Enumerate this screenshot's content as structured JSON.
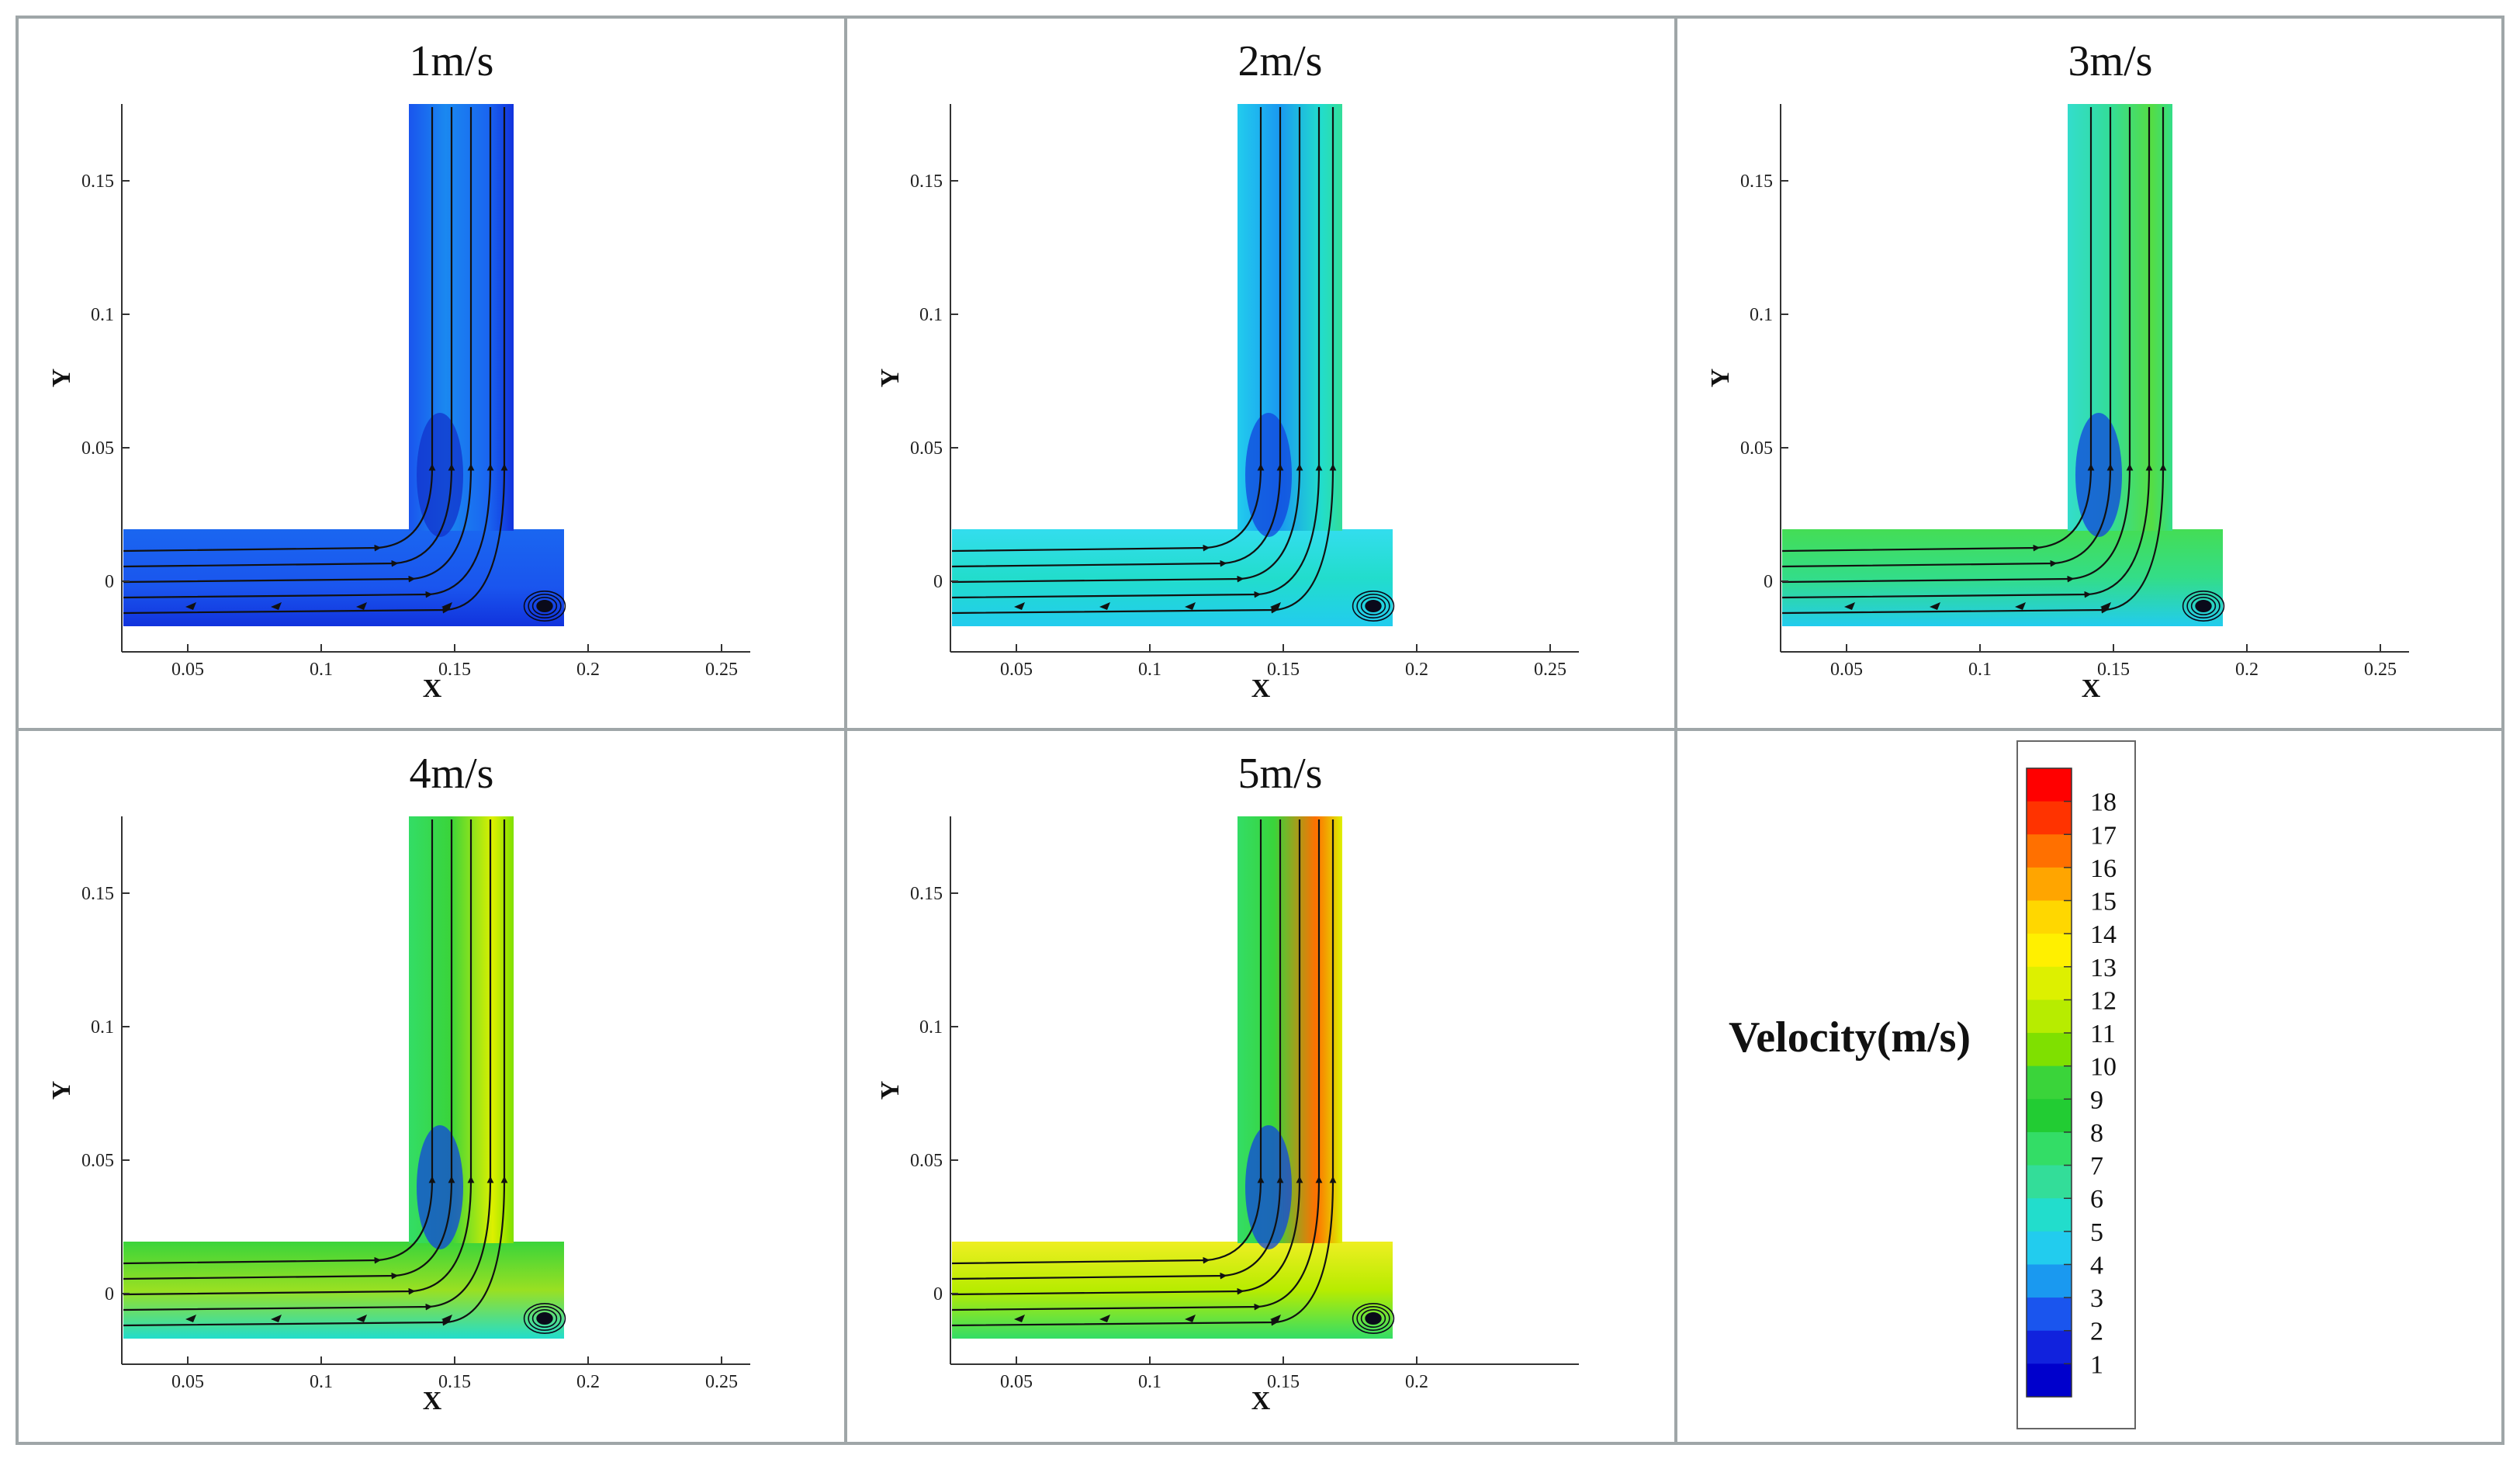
{
  "figure": {
    "panels": [
      {
        "title": "1m/s",
        "x_ticks": [
          "0.05",
          "0.1",
          "0.15",
          "0.2",
          "0.25"
        ],
        "y_ticks": [
          "0",
          "0.05",
          "0.1",
          "0.15"
        ],
        "x_axis_label": "X",
        "y_axis_label": "Y"
      },
      {
        "title": "2m/s",
        "x_ticks": [
          "0.05",
          "0.1",
          "0.15",
          "0.2",
          "0.25"
        ],
        "y_ticks": [
          "0",
          "0.05",
          "0.1",
          "0.15"
        ],
        "x_axis_label": "X",
        "y_axis_label": "Y"
      },
      {
        "title": "3m/s",
        "x_ticks": [
          "0.05",
          "0.1",
          "0.15",
          "0.2",
          "0.25"
        ],
        "y_ticks": [
          "0",
          "0.05",
          "0.1",
          "0.15"
        ],
        "x_axis_label": "X",
        "y_axis_label": "Y"
      },
      {
        "title": "4m/s",
        "x_ticks": [
          "0.05",
          "0.1",
          "0.15",
          "0.2",
          "0.25"
        ],
        "y_ticks": [
          "0",
          "0.05",
          "0.1",
          "0.15"
        ],
        "x_axis_label": "X",
        "y_axis_label": "Y"
      },
      {
        "title": "5m/s",
        "x_ticks": [
          "0.05",
          "0.1",
          "0.15",
          "0.2"
        ],
        "y_ticks": [
          "0",
          "0.05",
          "0.1",
          "0.15"
        ],
        "x_axis_label": "X",
        "y_axis_label": "Y"
      }
    ],
    "legend": {
      "title": "Velocity(m/s)",
      "levels": [
        "18",
        "17",
        "16",
        "15",
        "14",
        "13",
        "12",
        "11",
        "10",
        "9",
        "8",
        "7",
        "6",
        "5",
        "4",
        "3",
        "2",
        "1"
      ],
      "colors": [
        "#ff0000",
        "#ff3300",
        "#ff7000",
        "#ffa500",
        "#ffd700",
        "#fff000",
        "#ddf000",
        "#b7ec00",
        "#7fe000",
        "#3ad43a",
        "#22cc33",
        "#33dd66",
        "#33dd99",
        "#22ddcc",
        "#22ccee",
        "#1a99f0",
        "#1a55ee",
        "#1122dd",
        "#0000cc"
      ]
    },
    "colors": {
      "grid_border": "#9fa6a8",
      "streamline": "#111111",
      "vortex_core": "#0a0a1a"
    }
  }
}
